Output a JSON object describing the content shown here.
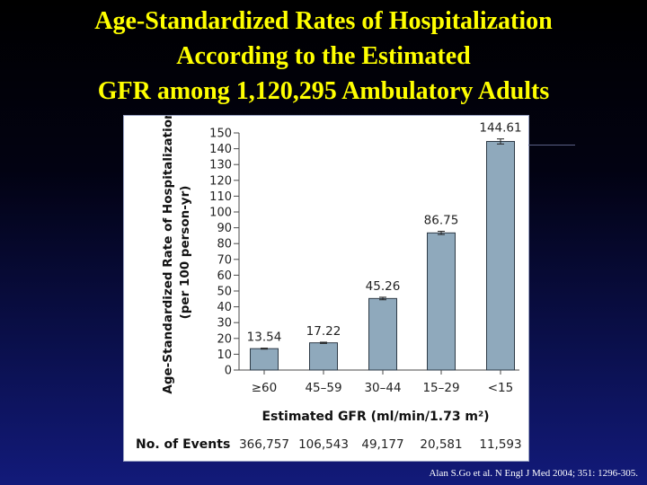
{
  "slide": {
    "title_lines": [
      "Age-Standardized Rates of Hospitalization",
      "According to the Estimated",
      "GFR among 1,120,295 Ambulatory Adults"
    ],
    "source": "Alan S.Go et al. N Engl J Med 2004; 351: 1296-305."
  },
  "colors": {
    "bar": "#8fa9bc",
    "title": "#ffff00"
  },
  "chart_data": {
    "type": "bar",
    "title": "",
    "ylabel_lines": [
      "Age-Standardized Rate of Hospitalization",
      "(per 100 person-yr)"
    ],
    "xlabel": "Estimated GFR (ml/min/1.73 m²)",
    "categories": [
      "≥60",
      "45–59",
      "30–44",
      "15–29",
      "<15"
    ],
    "values": [
      13.54,
      17.22,
      45.26,
      86.75,
      144.61
    ],
    "value_labels": [
      "13.54",
      "17.22",
      "45.26",
      "86.75",
      "144.61"
    ],
    "error": [
      0.3,
      0.4,
      0.8,
      1.0,
      1.6
    ],
    "ylim": [
      0,
      150
    ],
    "yticks": [
      0,
      10,
      20,
      30,
      40,
      50,
      60,
      70,
      80,
      90,
      100,
      110,
      120,
      130,
      140,
      150
    ],
    "events_label": "No. of Events",
    "events": [
      "366,757",
      "106,543",
      "49,177",
      "20,581",
      "11,593"
    ],
    "grid": false
  }
}
